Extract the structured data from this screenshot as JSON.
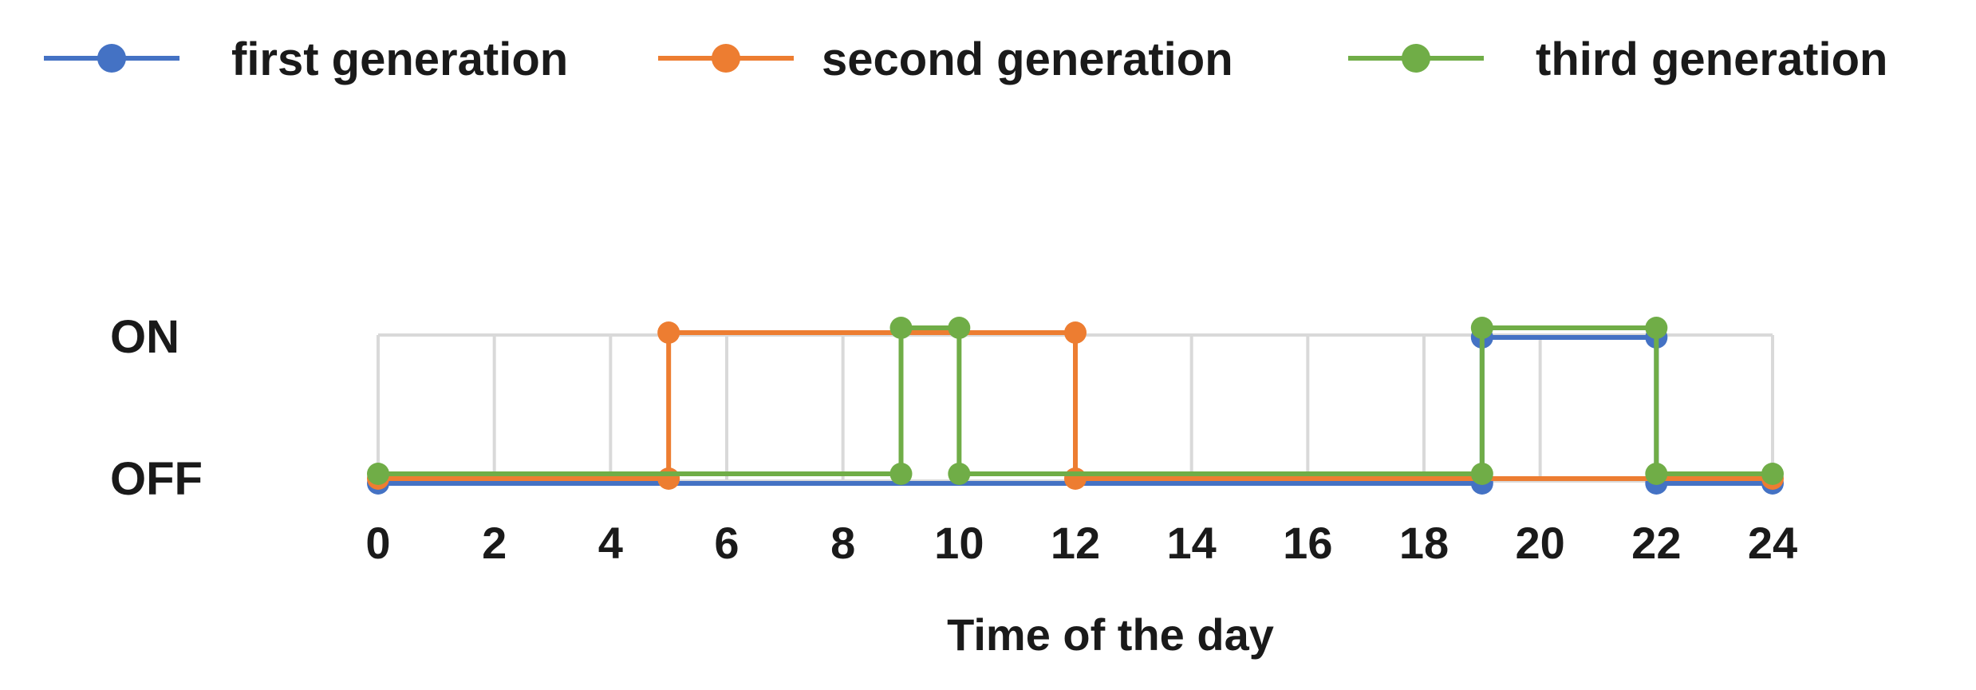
{
  "chart_data": {
    "type": "line",
    "title": "",
    "xlabel": "Time of the day",
    "ylabel": "",
    "xlim": [
      0,
      24
    ],
    "x_ticks": [
      0,
      2,
      4,
      6,
      8,
      10,
      12,
      14,
      16,
      18,
      20,
      22,
      24
    ],
    "y_categories": [
      "OFF",
      "ON"
    ],
    "grid": true,
    "legend_position": "top",
    "series": [
      {
        "name": "first generation",
        "color": "#4472C4",
        "points": [
          [
            0,
            0
          ],
          [
            19,
            0
          ],
          [
            19,
            1
          ],
          [
            22,
            1
          ],
          [
            22,
            0
          ],
          [
            24,
            0
          ]
        ]
      },
      {
        "name": "second generation",
        "color": "#ED7D31",
        "points": [
          [
            0,
            0
          ],
          [
            5,
            0
          ],
          [
            5,
            1
          ],
          [
            12,
            1
          ],
          [
            12,
            0
          ],
          [
            24,
            0
          ]
        ]
      },
      {
        "name": "third generation",
        "color": "#70AD47",
        "points": [
          [
            0,
            0
          ],
          [
            9,
            0
          ],
          [
            9,
            1
          ],
          [
            10,
            1
          ],
          [
            10,
            0
          ],
          [
            19,
            0
          ],
          [
            19,
            1
          ],
          [
            22,
            1
          ],
          [
            22,
            0
          ],
          [
            24,
            0
          ]
        ]
      }
    ]
  }
}
